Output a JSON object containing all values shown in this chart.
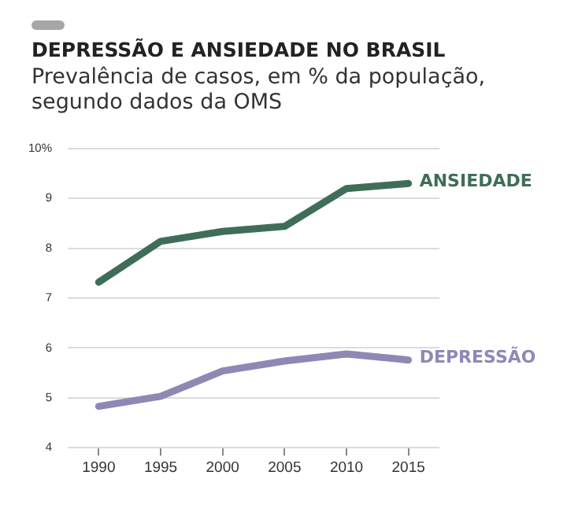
{
  "chart_data": {
    "type": "line",
    "title": "DEPRESSÃO E ANSIEDADE NO BRASIL",
    "subtitle": "Prevalência de casos, em % da população, segundo dados da OMS",
    "categories": [
      "1990",
      "1995",
      "2000",
      "2005",
      "2010",
      "2015"
    ],
    "series": [
      {
        "name": "ANSIEDADE",
        "color": "#3f6e58",
        "values": [
          7.32,
          8.14,
          8.34,
          8.44,
          9.2,
          9.3
        ]
      },
      {
        "name": "DEPRESSÃO",
        "color": "#9088b4",
        "values": [
          4.83,
          5.03,
          5.54,
          5.74,
          5.88,
          5.76
        ]
      }
    ],
    "ylim": [
      4,
      10
    ],
    "yticks": [
      4,
      5,
      6,
      7,
      8,
      9,
      {
        "value": 10,
        "label": "10%"
      }
    ],
    "grid": "y",
    "legend": false,
    "marker": "none",
    "line_style": "solid"
  }
}
